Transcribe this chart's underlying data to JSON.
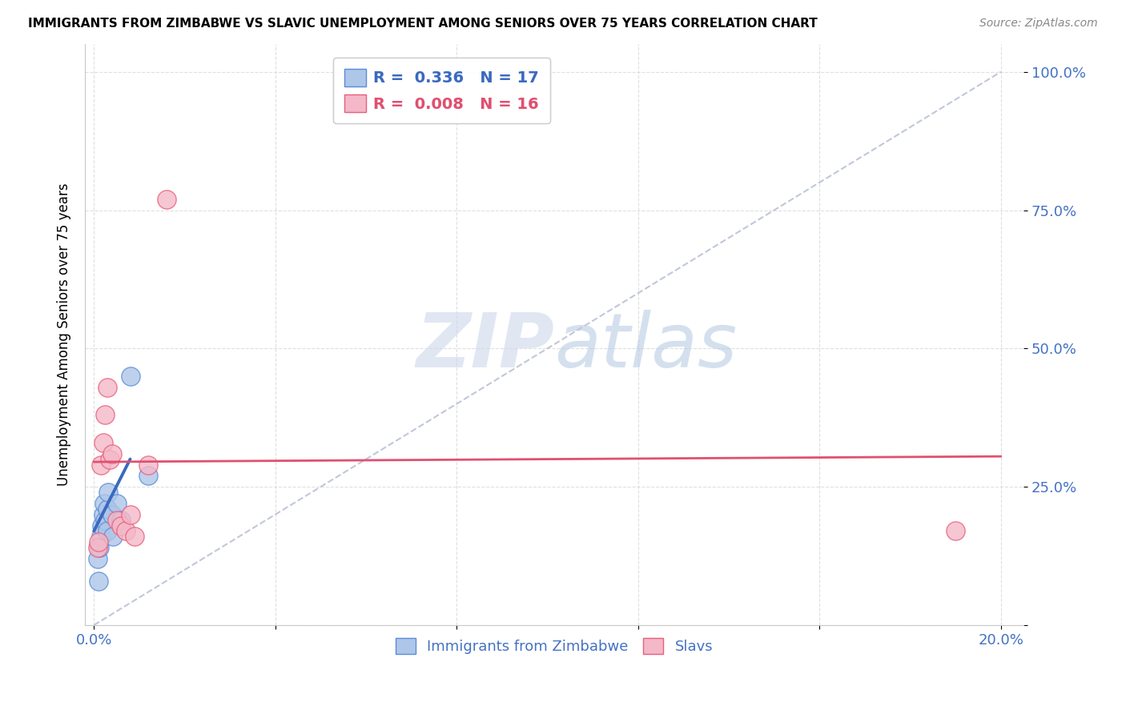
{
  "title": "IMMIGRANTS FROM ZIMBABWE VS SLAVIC UNEMPLOYMENT AMONG SENIORS OVER 75 YEARS CORRELATION CHART",
  "source": "Source: ZipAtlas.com",
  "ylabel_label": "Unemployment Among Seniors over 75 years",
  "blue_label": "Immigrants from Zimbabwe",
  "pink_label": "Slavs",
  "R_blue": 0.336,
  "N_blue": 17,
  "R_pink": 0.008,
  "N_pink": 16,
  "blue_fill": "#aec6e8",
  "pink_fill": "#f4b8c8",
  "blue_edge": "#5b8dd9",
  "pink_edge": "#e8607a",
  "blue_line": "#3a6abf",
  "pink_line": "#e05070",
  "diagonal_color": "#c0c8d8",
  "watermark_color": "#d8e4f0",
  "blue_scatter_x": [
    0.0008,
    0.001,
    0.0012,
    0.0015,
    0.0018,
    0.002,
    0.0022,
    0.0025,
    0.003,
    0.003,
    0.0032,
    0.004,
    0.0042,
    0.005,
    0.006,
    0.008,
    0.012
  ],
  "blue_scatter_y": [
    0.12,
    0.08,
    0.14,
    0.16,
    0.18,
    0.2,
    0.22,
    0.19,
    0.17,
    0.21,
    0.24,
    0.2,
    0.16,
    0.22,
    0.19,
    0.45,
    0.27
  ],
  "pink_scatter_x": [
    0.0008,
    0.001,
    0.0015,
    0.002,
    0.0025,
    0.003,
    0.0035,
    0.004,
    0.005,
    0.006,
    0.007,
    0.008,
    0.009,
    0.012,
    0.016,
    0.19
  ],
  "pink_scatter_y": [
    0.14,
    0.15,
    0.29,
    0.33,
    0.38,
    0.43,
    0.3,
    0.31,
    0.19,
    0.18,
    0.17,
    0.2,
    0.16,
    0.29,
    0.77,
    0.17
  ],
  "blue_line_x0": 0.0,
  "blue_line_x1": 0.008,
  "blue_line_y0": 0.17,
  "blue_line_y1": 0.3,
  "pink_line_x0": 0.0,
  "pink_line_x1": 0.2,
  "pink_line_y0": 0.295,
  "pink_line_y1": 0.305,
  "xlim_min": -0.002,
  "xlim_max": 0.205,
  "ylim_min": 0.0,
  "ylim_max": 1.05,
  "x_tick_pos": [
    0.0,
    0.04,
    0.08,
    0.12,
    0.16,
    0.2
  ],
  "x_tick_labels": [
    "0.0%",
    "",
    "",
    "",
    "",
    "20.0%"
  ],
  "y_tick_pos": [
    0.0,
    0.25,
    0.5,
    0.75,
    1.0
  ],
  "y_tick_labels": [
    "",
    "25.0%",
    "50.0%",
    "75.0%",
    "100.0%"
  ]
}
